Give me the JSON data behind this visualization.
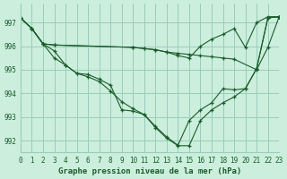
{
  "title": "Graphe pression niveau de la mer (hPa)",
  "background_color": "#cceedd",
  "grid_color": "#99ccbb",
  "line_color": "#1a5c2a",
  "xlim": [
    0,
    23
  ],
  "ylim": [
    991.5,
    997.8
  ],
  "yticks": [
    992,
    993,
    994,
    995,
    996,
    997
  ],
  "xticks": [
    0,
    1,
    2,
    3,
    4,
    5,
    6,
    7,
    8,
    9,
    10,
    11,
    12,
    13,
    14,
    15,
    16,
    17,
    18,
    19,
    20,
    21,
    22,
    23
  ],
  "series": [
    {
      "x": [
        0,
        1,
        2,
        3,
        10,
        11,
        12,
        13,
        14,
        15,
        16,
        17,
        18,
        19,
        21,
        22,
        23
      ],
      "y": [
        997.2,
        996.75,
        996.1,
        996.05,
        995.95,
        995.9,
        995.85,
        995.75,
        995.7,
        995.65,
        995.6,
        995.55,
        995.5,
        995.45,
        995.0,
        995.95,
        997.25
      ]
    },
    {
      "x": [
        0,
        1,
        2,
        3,
        10,
        11,
        12,
        13,
        14,
        15,
        16,
        17,
        18,
        19,
        20,
        21,
        22,
        23
      ],
      "y": [
        997.2,
        996.75,
        996.1,
        996.05,
        995.95,
        995.9,
        995.85,
        995.75,
        995.6,
        995.5,
        996.0,
        996.3,
        996.5,
        996.75,
        995.95,
        997.0,
        997.25,
        997.25
      ]
    },
    {
      "x": [
        0,
        1,
        2,
        3,
        4,
        5,
        6,
        7,
        8,
        9,
        10,
        11,
        12,
        13,
        14,
        15,
        16,
        17,
        18,
        19,
        20,
        21,
        22,
        23
      ],
      "y": [
        997.2,
        996.75,
        996.1,
        995.5,
        995.2,
        994.85,
        994.8,
        994.6,
        994.35,
        993.3,
        993.25,
        993.1,
        992.6,
        992.15,
        991.8,
        992.85,
        993.3,
        993.6,
        994.2,
        994.15,
        994.2,
        995.05,
        997.2,
        997.25
      ]
    },
    {
      "x": [
        0,
        1,
        2,
        3,
        4,
        5,
        6,
        7,
        8,
        9,
        10,
        11,
        12,
        13,
        14,
        15,
        16,
        17,
        18,
        19,
        20,
        21,
        22,
        23
      ],
      "y": [
        997.2,
        996.75,
        996.1,
        995.8,
        995.2,
        994.85,
        994.7,
        994.5,
        994.1,
        993.65,
        993.35,
        993.1,
        992.55,
        992.1,
        991.78,
        991.78,
        992.85,
        993.3,
        993.6,
        993.85,
        994.2,
        995.05,
        997.2,
        997.25
      ]
    }
  ]
}
